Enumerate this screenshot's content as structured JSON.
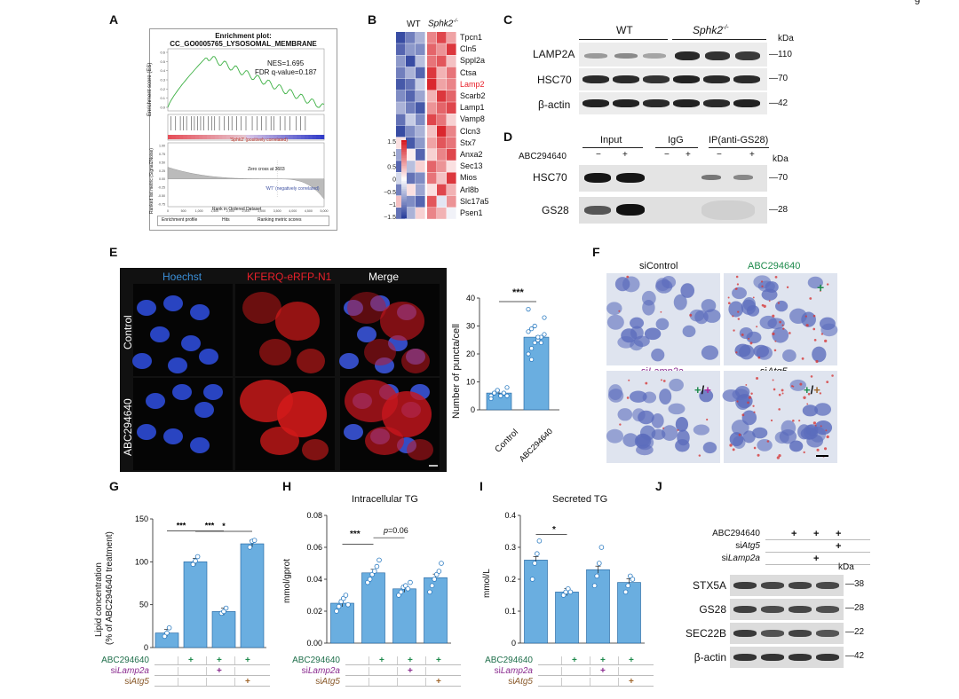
{
  "page_number": "9",
  "panel_labels": {
    "A": "A",
    "B": "B",
    "C": "C",
    "D": "D",
    "E": "E",
    "F": "F",
    "G": "G",
    "H": "H",
    "I": "I",
    "J": "J"
  },
  "panel_a": {
    "title_line1": "Enrichment plot:",
    "title_line2": "CC_GO0005765_LYSOSOMAL_MEMBRANE",
    "nes": "NES=1.695",
    "fdr": "FDR q-value=0.187",
    "ylabel": "Enrichment score (ES)",
    "ylabel2": "Ranked list metric (Signal2Noise)",
    "xlabel": "Rank in Ordered Dataset",
    "pos_label": "'Sphk2' (positively correlated)",
    "zero_label": "Zero cross at 3603",
    "neg_label": "'WT' (negatively correlated)",
    "es_ticks": [
      "0.6",
      "0.5",
      "0.4",
      "0.3",
      "0.2",
      "0.1",
      "0.0"
    ],
    "metric_ticks": [
      "1.00",
      "0.75",
      "0.50",
      "0.25",
      "0.00",
      "-0.25",
      "-0.50",
      "-0.75"
    ],
    "x_ticks": [
      "0",
      "500",
      "1,000",
      "1,500",
      "2,000",
      "2,500",
      "3,000",
      "3,500",
      "4,000",
      "4,500",
      "5,000"
    ],
    "legend": [
      "Enrichment profile",
      "Hits",
      "Ranking metric scores"
    ]
  },
  "panel_b": {
    "col_wt": "WT",
    "col_ko": "Sphk2",
    "col_ko_sup": "-/-",
    "genes": [
      "Tpcn1",
      "Cln5",
      "Sppl2a",
      "Ctsa",
      "Lamp2",
      "Scarb2",
      "Lamp1",
      "Vamp8",
      "Clcn3",
      "Stx7",
      "Anxa2",
      "Sec13",
      "Mios",
      "Arl8b",
      "Slc17a5",
      "Psen1"
    ],
    "highlight_gene": "Lamp2",
    "highlight_color": "#e8202a",
    "scale_ticks": [
      "1.5",
      "1",
      "0.5",
      "0",
      "−0.5",
      "−1",
      "−1.5"
    ],
    "matrix": [
      [
        -1.4,
        -1.0,
        -0.6,
        0.8,
        1.2,
        0.6
      ],
      [
        -1.2,
        -0.8,
        -0.9,
        1.0,
        0.7,
        1.3
      ],
      [
        -0.8,
        -1.4,
        -0.5,
        0.9,
        1.1,
        0.4
      ],
      [
        -1.0,
        -0.6,
        -1.2,
        1.3,
        0.5,
        0.9
      ],
      [
        -1.3,
        -1.1,
        -0.4,
        1.4,
        0.6,
        0.8
      ],
      [
        -0.9,
        -1.2,
        -0.7,
        0.5,
        1.3,
        1.0
      ],
      [
        -0.6,
        -1.0,
        -1.3,
        0.7,
        1.0,
        1.2
      ],
      [
        -1.1,
        -0.4,
        -0.9,
        1.2,
        0.9,
        0.3
      ],
      [
        -1.4,
        -0.9,
        -0.6,
        0.4,
        1.4,
        0.8
      ],
      [
        0.2,
        -1.3,
        -0.8,
        0.6,
        1.1,
        0.9
      ],
      [
        -0.7,
        0.1,
        -1.2,
        0.3,
        0.8,
        1.2
      ],
      [
        -1.2,
        -0.5,
        0.3,
        1.0,
        0.7,
        0.2
      ],
      [
        -0.3,
        -1.1,
        -0.9,
        0.9,
        0.4,
        1.3
      ],
      [
        -1.0,
        0.2,
        -0.7,
        0.2,
        1.2,
        0.5
      ],
      [
        0.4,
        -0.9,
        -1.2,
        1.1,
        -0.2,
        0.7
      ],
      [
        -1.1,
        -0.6,
        0.3,
        0.8,
        0.5,
        -0.1
      ]
    ],
    "colors": {
      "high": "#d7181f",
      "low": "#2a3f9c",
      "mid": "#ffffff"
    }
  },
  "panel_c": {
    "wt": "WT",
    "ko": "Sphk2",
    "ko_sup": "-/-",
    "kda": "kDa",
    "rows": [
      {
        "label": "LAMP2A",
        "kda": "110"
      },
      {
        "label": "HSC70",
        "kda": "70"
      },
      {
        "label": "β-actin",
        "kda": "42"
      }
    ]
  },
  "panel_d": {
    "groups": [
      "Input",
      "IgG",
      "IP(anti-GS28)"
    ],
    "treatment": "ABC294640",
    "signs": [
      "−",
      "+",
      "−",
      "+",
      "−",
      "+"
    ],
    "kda": "kDa",
    "rows": [
      {
        "label": "HSC70",
        "kda": "70"
      },
      {
        "label": "GS28",
        "kda": "28"
      }
    ]
  },
  "panel_e": {
    "col_labels": [
      "Hoechst",
      "KFERQ-eRFP-N1",
      "Merge"
    ],
    "col_colors": [
      "#3b8fd8",
      "#e8202a",
      "#222222"
    ],
    "row_labels": [
      "Control",
      "ABC294640"
    ],
    "ylabel": "Number of puncta/cell",
    "sig": "***"
  },
  "chart_e": {
    "type": "bar",
    "categories": [
      "Control",
      "ABC294640"
    ],
    "values": [
      6,
      26
    ],
    "points": [
      [
        5,
        6,
        7,
        5,
        6,
        8,
        4,
        6,
        7,
        5,
        6,
        5
      ],
      [
        20,
        22,
        24,
        25,
        26,
        27,
        28,
        29,
        30,
        26,
        24,
        33,
        36,
        18
      ]
    ],
    "ylim": [
      0,
      40
    ],
    "yticks": [
      "0",
      "10",
      "20",
      "30",
      "40"
    ],
    "ylabel": "Number of puncta/cell"
  },
  "panel_f": {
    "labels": [
      "siControl",
      "ABC294640",
      "siLamp2a",
      "siAtg5"
    ],
    "label_prefix": [
      "",
      "",
      "si",
      "si"
    ],
    "label_italic": [
      "",
      "",
      "Lamp2a",
      "Atg5"
    ],
    "label_colors": [
      "#222222",
      "#1e8a4c",
      "#8a2b8f",
      "#222222"
    ],
    "sign_plus": "+",
    "sign_slash": "/",
    "sign_colors": {
      "abc": "#1e8a4c",
      "lamp": "#b0249a",
      "atg": "#a0652a"
    }
  },
  "chart_g": {
    "type": "bar",
    "ylabel_line1": "Lipid concentration",
    "ylabel_line2": "(% of ABC294640 treatment)",
    "values": [
      17,
      100,
      42,
      121
    ],
    "points": [
      [
        13,
        17,
        23
      ],
      [
        97,
        101,
        106
      ],
      [
        40,
        42,
        46
      ],
      [
        117,
        124,
        125
      ]
    ],
    "ylim": [
      0,
      150
    ],
    "yticks": [
      "0",
      "50",
      "100",
      "150"
    ],
    "sigs": [
      "***",
      "***",
      "*"
    ]
  },
  "chart_h": {
    "type": "bar",
    "title": "Intracellular TG",
    "ylabel": "mmol/gprot",
    "values": [
      0.025,
      0.044,
      0.034,
      0.041
    ],
    "points": [
      [
        0.02,
        0.023,
        0.026,
        0.028,
        0.03,
        0.024
      ],
      [
        0.038,
        0.04,
        0.043,
        0.045,
        0.048,
        0.052
      ],
      [
        0.03,
        0.032,
        0.035,
        0.036,
        0.034,
        0.038
      ],
      [
        0.032,
        0.036,
        0.04,
        0.043,
        0.045,
        0.05
      ]
    ],
    "ylim": [
      0,
      0.08
    ],
    "yticks": [
      "0.00",
      "0.02",
      "0.04",
      "0.06",
      "0.08"
    ],
    "sig1": "***",
    "sig2_prefix": "p",
    "sig2": "=0.06"
  },
  "chart_i": {
    "type": "bar",
    "title": "Secreted TG",
    "ylabel": "mmol/L",
    "values": [
      0.26,
      0.16,
      0.23,
      0.19
    ],
    "points": [
      [
        0.2,
        0.25,
        0.28,
        0.32
      ],
      [
        0.15,
        0.16,
        0.17,
        0.16
      ],
      [
        0.18,
        0.21,
        0.25,
        0.3
      ],
      [
        0.16,
        0.18,
        0.21,
        0.2
      ]
    ],
    "ylim": [
      0,
      0.4
    ],
    "yticks": [
      "0",
      "0.1",
      "0.2",
      "0.3",
      "0.4"
    ],
    "sig": "*"
  },
  "treatment_table": {
    "rows": [
      {
        "prefix": "",
        "name": "ABC294640",
        "italic": "",
        "color": "#1e6e4a",
        "signs": [
          "",
          "+",
          "+",
          "+"
        ],
        "sign_color": "#1e8a4c"
      },
      {
        "prefix": "si",
        "name": "",
        "italic": "Lamp2a",
        "color": "#8a2b8f",
        "signs": [
          "",
          "",
          "+",
          ""
        ],
        "sign_color": "#8a2b8f"
      },
      {
        "prefix": "si",
        "name": "",
        "italic": "Atg5",
        "color": "#8a5a2b",
        "signs": [
          "",
          "",
          "",
          "+"
        ],
        "sign_color": "#a0652a"
      }
    ]
  },
  "panel_j": {
    "rows_top": [
      {
        "prefix": "",
        "italic": "",
        "name": "ABC294640",
        "signs": [
          "",
          "+",
          "+",
          "+"
        ]
      },
      {
        "prefix": "si",
        "italic": "Atg5",
        "name": "",
        "signs": [
          "",
          "",
          "",
          "+"
        ]
      },
      {
        "prefix": "si",
        "italic": "Lamp2a",
        "name": "",
        "signs": [
          "",
          "",
          "+",
          ""
        ]
      }
    ],
    "kda": "kDa",
    "blots": [
      {
        "label": "STX5A",
        "kda": "38"
      },
      {
        "label": "GS28",
        "kda": "28"
      },
      {
        "label": "SEC22B",
        "kda": "22"
      },
      {
        "label": "β-actin",
        "kda": "42"
      }
    ]
  }
}
